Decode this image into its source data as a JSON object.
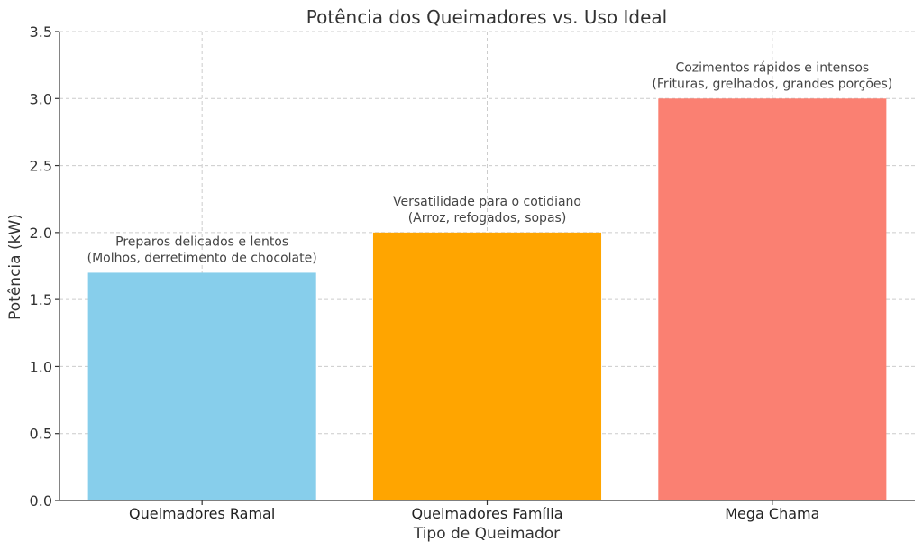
{
  "chart_data": {
    "type": "bar",
    "title": "Potência dos Queimadores vs. Uso Ideal",
    "xlabel": "Tipo de Queimador",
    "ylabel": "Potência (kW)",
    "ylim": [
      0,
      3.5
    ],
    "yticks": [
      "0.0",
      "0.5",
      "1.0",
      "1.5",
      "2.0",
      "2.5",
      "3.0",
      "3.5"
    ],
    "grid": true,
    "categories": [
      "Queimadores Ramal",
      "Queimadores Família",
      "Mega Chama"
    ],
    "values": [
      1.7,
      2.0,
      3.0
    ],
    "colors": [
      "#87CEEB",
      "#FFA500",
      "#FA8072"
    ],
    "annotations": [
      [
        "Preparos delicados e lentos",
        "(Molhos, derretimento de chocolate)"
      ],
      [
        "Versatilidade para o cotidiano",
        "(Arroz, refogados, sopas)"
      ],
      [
        "Cozimentos rápidos e intensos",
        "(Frituras, grelhados, grandes porções)"
      ]
    ]
  }
}
